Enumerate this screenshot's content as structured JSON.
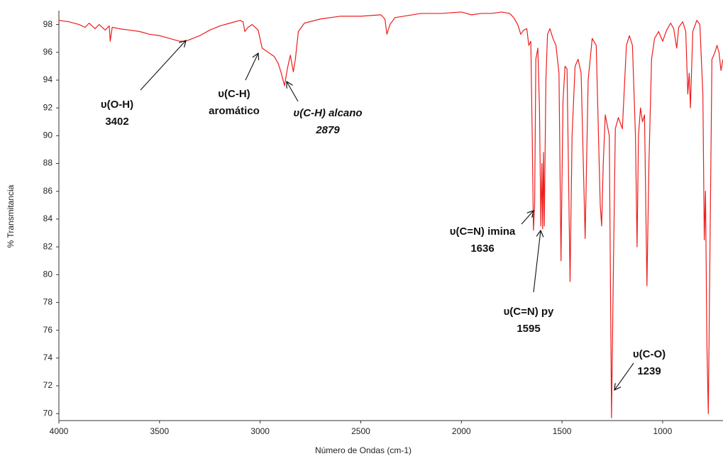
{
  "chart_data": {
    "type": "line",
    "xlabel": "Número de Ondas (cm-1)",
    "ylabel": "% Transmitancia",
    "color": "#ee1c1c",
    "xlim": [
      4000,
      700
    ],
    "ylim": [
      69.5,
      99
    ],
    "xticks": [
      4000,
      3500,
      3000,
      2500,
      2000,
      1500,
      1000
    ],
    "yticks": [
      70,
      72,
      74,
      76,
      78,
      80,
      82,
      84,
      86,
      88,
      90,
      92,
      94,
      96,
      98
    ],
    "x": [
      4000,
      3950,
      3900,
      3870,
      3850,
      3820,
      3800,
      3770,
      3750,
      3745,
      3735,
      3700,
      3650,
      3600,
      3550,
      3500,
      3450,
      3402,
      3370,
      3300,
      3250,
      3200,
      3150,
      3100,
      3085,
      3076,
      3060,
      3040,
      3010,
      2990,
      2960,
      2930,
      2910,
      2895,
      2879,
      2865,
      2850,
      2835,
      2825,
      2810,
      2780,
      2700,
      2600,
      2500,
      2400,
      2380,
      2370,
      2355,
      2330,
      2200,
      2100,
      2000,
      1950,
      1900,
      1850,
      1800,
      1760,
      1740,
      1720,
      1705,
      1690,
      1675,
      1665,
      1655,
      1648,
      1642,
      1636,
      1630,
      1620,
      1612,
      1605,
      1600,
      1596,
      1592,
      1588,
      1580,
      1572,
      1560,
      1545,
      1530,
      1515,
      1505,
      1495,
      1485,
      1475,
      1460,
      1450,
      1435,
      1420,
      1405,
      1385,
      1370,
      1350,
      1330,
      1310,
      1303,
      1295,
      1285,
      1265,
      1254,
      1245,
      1235,
      1220,
      1200,
      1180,
      1165,
      1150,
      1135,
      1127,
      1120,
      1110,
      1100,
      1090,
      1078,
      1068,
      1055,
      1040,
      1020,
      1000,
      980,
      960,
      945,
      930,
      920,
      900,
      885,
      875,
      868,
      862,
      850,
      830,
      815,
      800,
      793,
      787,
      780,
      773,
      766,
      755,
      740,
      730,
      720,
      710,
      700
    ],
    "values": [
      98.3,
      98.2,
      98.0,
      97.8,
      98.1,
      97.7,
      98.0,
      97.6,
      97.9,
      96.8,
      97.8,
      97.7,
      97.6,
      97.5,
      97.3,
      97.2,
      97.0,
      96.8,
      96.8,
      97.2,
      97.6,
      97.9,
      98.1,
      98.3,
      98.2,
      97.5,
      97.8,
      98.0,
      97.6,
      96.3,
      96.0,
      95.7,
      95.2,
      94.5,
      93.6,
      94.8,
      95.8,
      94.6,
      95.5,
      97.5,
      98.1,
      98.4,
      98.6,
      98.6,
      98.7,
      98.4,
      97.3,
      98.0,
      98.5,
      98.8,
      98.8,
      98.9,
      98.7,
      98.8,
      98.8,
      98.9,
      98.8,
      98.5,
      98.0,
      97.3,
      97.6,
      97.7,
      96.5,
      96.8,
      90,
      83.2,
      85,
      95.5,
      96.3,
      92,
      83.5,
      88,
      83.3,
      88.8,
      83.5,
      94,
      97.3,
      97.7,
      97.0,
      96.5,
      94.5,
      81.0,
      92.5,
      95.0,
      94.8,
      79.5,
      90,
      95.0,
      95.5,
      94.5,
      82.6,
      94,
      97.0,
      96.5,
      85,
      83.5,
      88,
      91.5,
      90,
      69.7,
      80,
      90.5,
      91.3,
      90.5,
      96.5,
      97.2,
      96.5,
      90,
      82,
      90,
      92.0,
      91,
      91.5,
      79.2,
      88,
      95.5,
      97.0,
      97.5,
      96.8,
      97.6,
      98.1,
      97.7,
      96.3,
      97.8,
      98.2,
      97.5,
      93.0,
      94.5,
      92,
      97.5,
      98.3,
      98.0,
      93,
      82.5,
      86,
      75,
      70.0,
      80,
      95.5,
      96.0,
      96.5,
      96.0,
      94.7,
      95.5
    ],
    "annotations": [
      {
        "lines": [
          "υ(O-H)",
          "3402"
        ]
      },
      {
        "lines": [
          "υ(C-H)",
          "aromático"
        ]
      },
      {
        "lines": [
          "υ(C-H) alcano",
          "2879"
        ]
      },
      {
        "lines": [
          "υ(C=N) imina",
          "1636"
        ]
      },
      {
        "lines": [
          "υ(C=N) py",
          "1595"
        ]
      },
      {
        "lines": [
          "υ(C-O)",
          "1239"
        ]
      }
    ]
  }
}
